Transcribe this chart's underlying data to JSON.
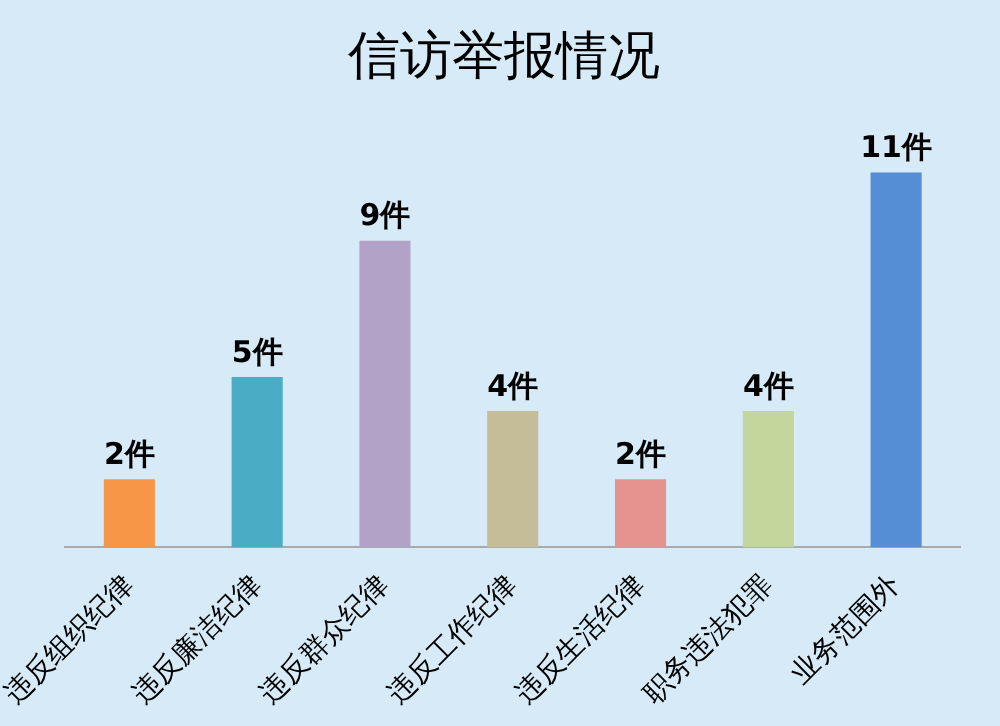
{
  "chart_data": {
    "type": "bar",
    "title": "信访举报情况",
    "categories": [
      "违反组织纪律",
      "违反廉洁纪律",
      "违反群众纪律",
      "违反工作纪律",
      "违反生活纪律",
      "职务违法犯罪",
      "业务范围外"
    ],
    "values": [
      2,
      5,
      9,
      4,
      2,
      4,
      11
    ],
    "colors": [
      "#f79646",
      "#4bacc6",
      "#b3a2c7",
      "#c4bd97",
      "#e6928f",
      "#c3d69b",
      "#558ed5"
    ],
    "value_labels": [
      "2件",
      "5件",
      "9件",
      "4件",
      "2件",
      "4件",
      "11件"
    ],
    "grid": false,
    "legend": false
  }
}
